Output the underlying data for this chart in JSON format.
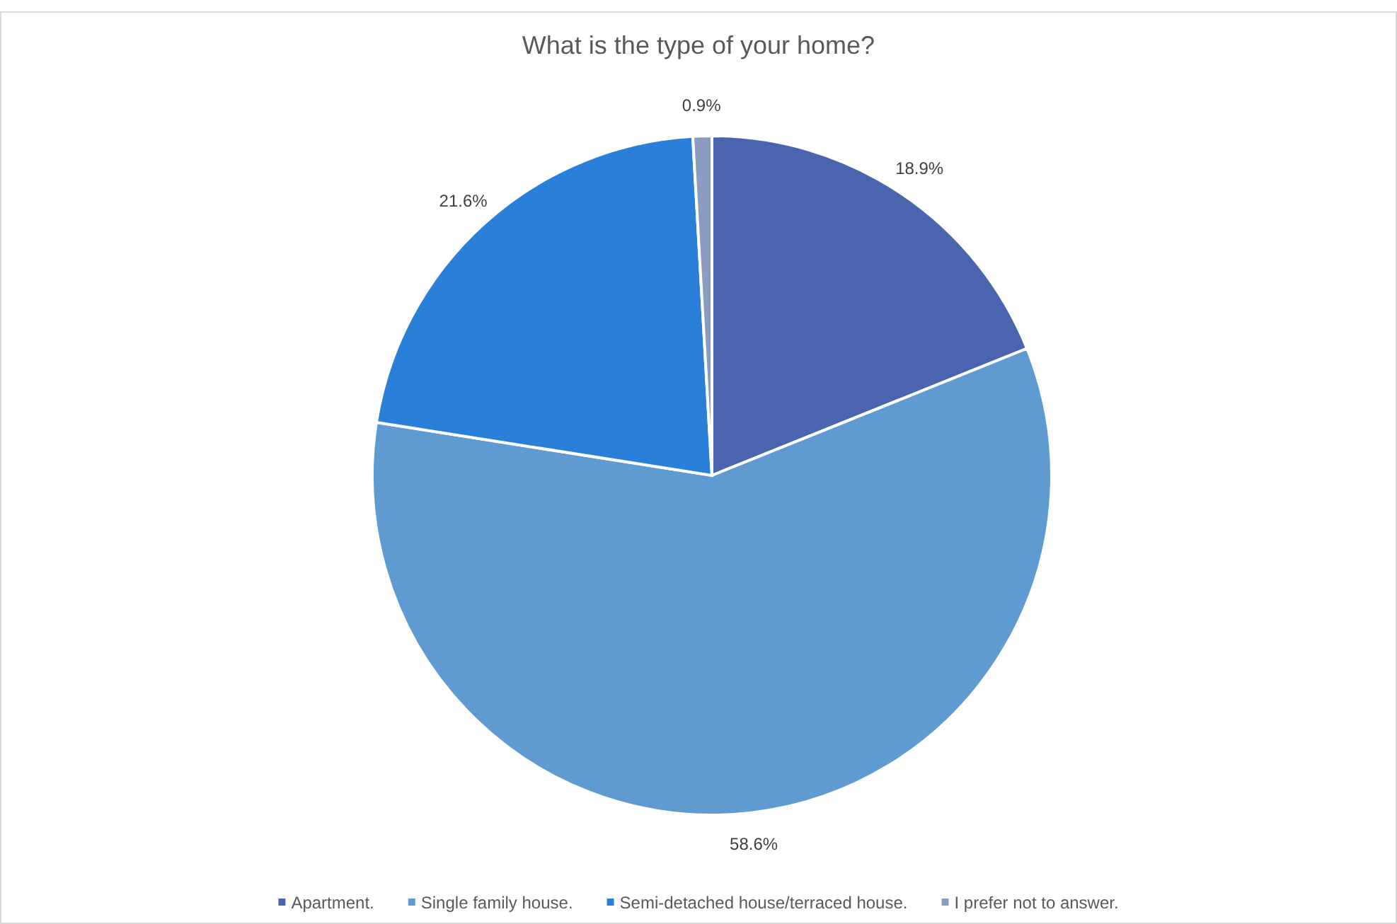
{
  "chart_data": {
    "type": "pie",
    "title": "What is the type of your home?",
    "categories": [
      "Apartment.",
      "Single family house.",
      "Semi-detached house/terraced house.",
      "I prefer not to answer."
    ],
    "values": [
      18.9,
      58.6,
      21.6,
      0.9
    ],
    "colors": [
      "#4a65ad",
      "#5f9bd1",
      "#2a7fd8",
      "#8a9dc0"
    ],
    "value_labels": [
      "18.9%",
      "58.6%",
      "21.6%",
      "0.9%"
    ],
    "legend": "bottom"
  }
}
